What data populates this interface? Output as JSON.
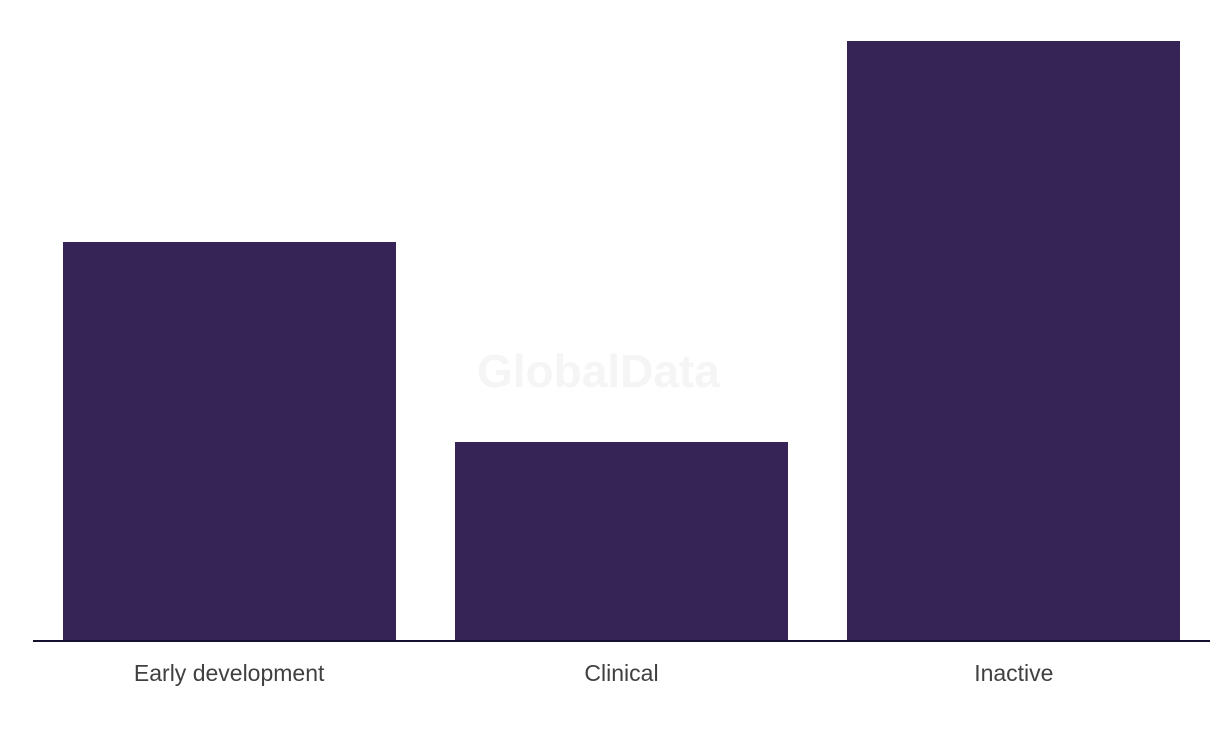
{
  "chart_data": {
    "type": "bar",
    "title": "",
    "xlabel": "",
    "ylabel": "",
    "categories": [
      "Early development",
      "Clinical",
      "Inactive"
    ],
    "values": [
      66.4,
      33.1,
      100
    ],
    "value_axis_note": "no value axis shown in image; values are relative percentages of tallest bar",
    "ylim": [
      0,
      100
    ],
    "grid": false,
    "legend": "none",
    "bar_color": "#362456",
    "axis_line_color": "#14122e",
    "label_color": "#404040"
  },
  "watermark": {
    "text": "GlobalData",
    "color": "#f5f5f5"
  }
}
